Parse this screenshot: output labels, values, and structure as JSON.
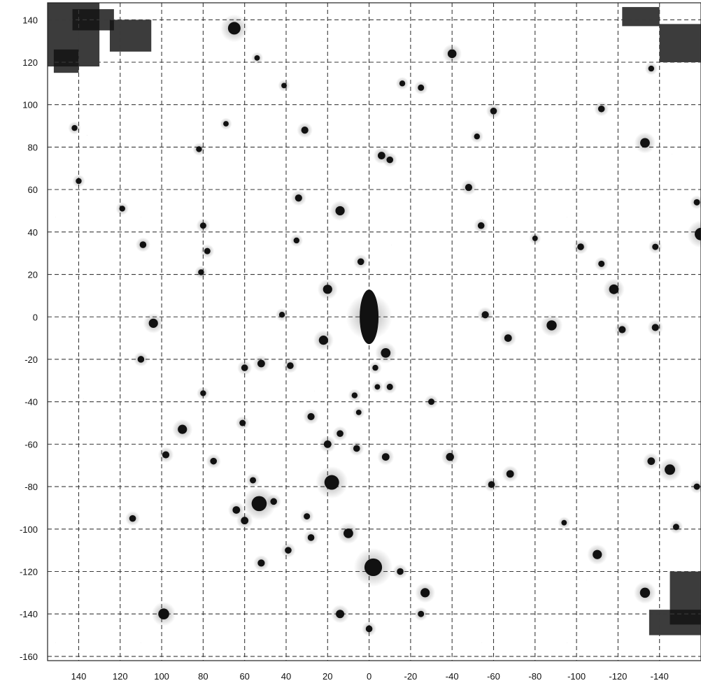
{
  "image": {
    "kind": "astronomical grayscale (inverted) deep field with dashed coordinate grid",
    "background": "#ffffff",
    "foreground": "#111111",
    "grid_style": "dashed"
  },
  "x_axis": {
    "tick_labels": [
      "140",
      "120",
      "100",
      "80",
      "60",
      "40",
      "20",
      "0",
      "-20",
      "-40",
      "-60",
      "-80",
      "-100",
      "-120",
      "-140"
    ],
    "values": [
      140,
      120,
      100,
      80,
      60,
      40,
      20,
      0,
      -20,
      -40,
      -60,
      -80,
      -100,
      -120,
      -140
    ],
    "range": [
      155,
      -160
    ],
    "direction": "decreasing to the right"
  },
  "y_axis": {
    "tick_labels": [
      "140",
      "120",
      "100",
      "80",
      "60",
      "40",
      "20",
      "0",
      "-20",
      "-40",
      "-60",
      "-80",
      "-100",
      "-120",
      "-140",
      "-160"
    ],
    "values": [
      140,
      120,
      100,
      80,
      60,
      40,
      20,
      0,
      -20,
      -40,
      -60,
      -80,
      -100,
      -120,
      -140,
      -160
    ],
    "range": [
      148,
      -162
    ]
  },
  "sources": [
    {
      "x": 0,
      "y": 0,
      "r": 5,
      "type": "bright-extended"
    },
    {
      "x": -2,
      "y": -118,
      "r": 4.2
    },
    {
      "x": 18,
      "y": -78,
      "r": 3.5
    },
    {
      "x": 53,
      "y": -88,
      "r": 3.6
    },
    {
      "x": 65,
      "y": 136,
      "r": 3
    },
    {
      "x": -160,
      "y": 39,
      "r": 3
    },
    {
      "x": -145,
      "y": -72,
      "r": 2.5
    },
    {
      "x": -88,
      "y": -4,
      "r": 2.4
    },
    {
      "x": -118,
      "y": 13,
      "r": 2.3
    },
    {
      "x": -133,
      "y": 82,
      "r": 2.3
    },
    {
      "x": -40,
      "y": 124,
      "r": 2.1
    },
    {
      "x": 14,
      "y": 50,
      "r": 2.2
    },
    {
      "x": 20,
      "y": 13,
      "r": 2.2
    },
    {
      "x": 90,
      "y": -53,
      "r": 2.2
    },
    {
      "x": 104,
      "y": -3,
      "r": 2.2
    },
    {
      "x": 99,
      "y": -140,
      "r": 2.6
    },
    {
      "x": 10,
      "y": -102,
      "r": 2.3
    },
    {
      "x": -8,
      "y": -17,
      "r": 2.3
    },
    {
      "x": 22,
      "y": -11,
      "r": 2.2
    },
    {
      "x": -133,
      "y": -130,
      "r": 2.4
    },
    {
      "x": -110,
      "y": -112,
      "r": 2.2
    },
    {
      "x": -27,
      "y": -130,
      "r": 2.2
    },
    {
      "x": 14,
      "y": -140,
      "r": 2
    },
    {
      "x": -39,
      "y": -66,
      "r": 1.9
    },
    {
      "x": -68,
      "y": -74,
      "r": 1.8
    },
    {
      "x": -67,
      "y": -10,
      "r": 1.8
    },
    {
      "x": -56,
      "y": 1,
      "r": 1.7
    },
    {
      "x": -48,
      "y": 61,
      "r": 1.7
    },
    {
      "x": -60,
      "y": 97,
      "r": 1.6
    },
    {
      "x": -112,
      "y": 98,
      "r": 1.6
    },
    {
      "x": -102,
      "y": 33,
      "r": 1.6
    },
    {
      "x": -54,
      "y": 43,
      "r": 1.6
    },
    {
      "x": -6,
      "y": 76,
      "r": 1.8
    },
    {
      "x": -10,
      "y": 74,
      "r": 1.6
    },
    {
      "x": 31,
      "y": 88,
      "r": 1.7
    },
    {
      "x": 34,
      "y": 56,
      "r": 1.7
    },
    {
      "x": 4,
      "y": 26,
      "r": 1.6
    },
    {
      "x": 109,
      "y": 34,
      "r": 1.6
    },
    {
      "x": 80,
      "y": 43,
      "r": 1.5
    },
    {
      "x": 78,
      "y": 31,
      "r": 1.5
    },
    {
      "x": 110,
      "y": -20,
      "r": 1.6
    },
    {
      "x": 52,
      "y": -22,
      "r": 1.8
    },
    {
      "x": 60,
      "y": -24,
      "r": 1.6
    },
    {
      "x": 38,
      "y": -23,
      "r": 1.6
    },
    {
      "x": 28,
      "y": -47,
      "r": 1.7
    },
    {
      "x": 20,
      "y": -60,
      "r": 1.8
    },
    {
      "x": 14,
      "y": -55,
      "r": 1.6
    },
    {
      "x": -8,
      "y": -66,
      "r": 1.8
    },
    {
      "x": 6,
      "y": -62,
      "r": 1.6
    },
    {
      "x": 98,
      "y": -65,
      "r": 1.7
    },
    {
      "x": 75,
      "y": -68,
      "r": 1.6
    },
    {
      "x": 56,
      "y": -77,
      "r": 1.5
    },
    {
      "x": 61,
      "y": -50,
      "r": 1.5
    },
    {
      "x": 64,
      "y": -91,
      "r": 1.8
    },
    {
      "x": 60,
      "y": -96,
      "r": 1.8
    },
    {
      "x": 46,
      "y": -87,
      "r": 1.6
    },
    {
      "x": 52,
      "y": -116,
      "r": 1.7
    },
    {
      "x": 39,
      "y": -110,
      "r": 1.6
    },
    {
      "x": 28,
      "y": -104,
      "r": 1.6
    },
    {
      "x": 30,
      "y": -94,
      "r": 1.5
    },
    {
      "x": 114,
      "y": -95,
      "r": 1.6
    },
    {
      "x": -15,
      "y": -120,
      "r": 1.6
    },
    {
      "x": -10,
      "y": -33,
      "r": 1.5
    },
    {
      "x": -30,
      "y": -40,
      "r": 1.5
    },
    {
      "x": -59,
      "y": -79,
      "r": 1.6
    },
    {
      "x": -136,
      "y": -68,
      "r": 1.8
    },
    {
      "x": -138,
      "y": -5,
      "r": 1.7
    },
    {
      "x": -122,
      "y": -6,
      "r": 1.7
    },
    {
      "x": -112,
      "y": 25,
      "r": 1.5
    },
    {
      "x": -138,
      "y": 33,
      "r": 1.5
    },
    {
      "x": -148,
      "y": -99,
      "r": 1.5
    },
    {
      "x": -158,
      "y": -80,
      "r": 1.5
    },
    {
      "x": -158,
      "y": 54,
      "r": 1.5
    },
    {
      "x": -25,
      "y": 108,
      "r": 1.5
    },
    {
      "x": -16,
      "y": 110,
      "r": 1.4
    },
    {
      "x": -52,
      "y": 85,
      "r": 1.4
    },
    {
      "x": -136,
      "y": 117,
      "r": 1.4
    },
    {
      "x": 0,
      "y": -147,
      "r": 1.6
    },
    {
      "x": -25,
      "y": -140,
      "r": 1.5
    },
    {
      "x": 35,
      "y": 36,
      "r": 1.4
    },
    {
      "x": 42,
      "y": 1,
      "r": 1.4
    },
    {
      "x": 82,
      "y": 79,
      "r": 1.4
    },
    {
      "x": 81,
      "y": 21,
      "r": 1.4
    },
    {
      "x": 119,
      "y": 51,
      "r": 1.4
    },
    {
      "x": 140,
      "y": 64,
      "r": 1.4
    },
    {
      "x": 142,
      "y": 89,
      "r": 1.4
    },
    {
      "x": 80,
      "y": -36,
      "r": 1.4
    },
    {
      "x": 7,
      "y": -37,
      "r": 1.4
    },
    {
      "x": -3,
      "y": -24,
      "r": 1.4
    },
    {
      "x": -4,
      "y": -33,
      "r": 1.3
    },
    {
      "x": 5,
      "y": -45,
      "r": 1.3
    },
    {
      "x": -94,
      "y": -97,
      "r": 1.3
    },
    {
      "x": -80,
      "y": 37,
      "r": 1.3
    },
    {
      "x": 69,
      "y": 91,
      "r": 1.3
    },
    {
      "x": 54,
      "y": 122,
      "r": 1.3
    },
    {
      "x": 41,
      "y": 109,
      "r": 1.3
    }
  ],
  "dark_regions": [
    {
      "x0": 155,
      "y0": 148,
      "x1": 130,
      "y1": 118
    },
    {
      "x0": 143,
      "y0": 145,
      "x1": 123,
      "y1": 135
    },
    {
      "x0": 125,
      "y0": 140,
      "x1": 105,
      "y1": 125
    },
    {
      "x0": 152,
      "y0": 126,
      "x1": 140,
      "y1": 115
    },
    {
      "x0": -122,
      "y0": 146,
      "x1": -140,
      "y1": 137
    },
    {
      "x0": -140,
      "y0": 138,
      "x1": -160,
      "y1": 120
    },
    {
      "x0": -145,
      "y0": -120,
      "x1": -160,
      "y1": -145
    },
    {
      "x0": -135,
      "y0": -138,
      "x1": -160,
      "y1": -150
    }
  ]
}
